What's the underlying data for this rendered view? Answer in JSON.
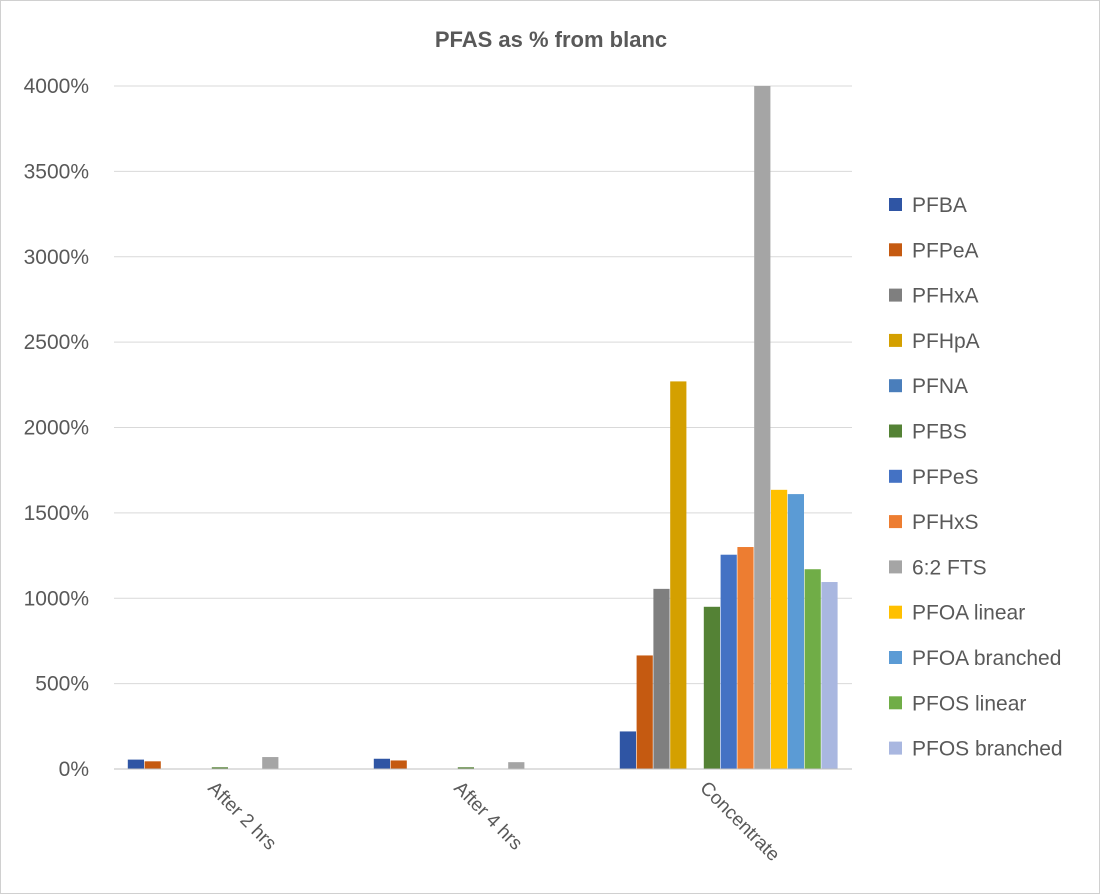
{
  "chart_data": {
    "type": "bar",
    "title": "PFAS as % from blanc",
    "xlabel": "",
    "ylabel": "",
    "ylim": [
      0,
      4000
    ],
    "yticks": [
      0,
      500,
      1000,
      1500,
      2000,
      2500,
      3000,
      3500,
      4000
    ],
    "ytick_suffix": "%",
    "grid": true,
    "legend_position": "right",
    "categories": [
      "After 2 hrs",
      "After 4 hrs",
      "Concentrate"
    ],
    "series": [
      {
        "name": "PFBA",
        "color": "#2f55a4",
        "values": [
          55,
          60,
          220
        ]
      },
      {
        "name": "PFPeA",
        "color": "#c55a11",
        "values": [
          45,
          50,
          665
        ]
      },
      {
        "name": "PFHxA",
        "color": "#7f7f7f",
        "values": [
          0,
          0,
          1055
        ]
      },
      {
        "name": "PFHpA",
        "color": "#d4a000",
        "values": [
          0,
          0,
          2270
        ]
      },
      {
        "name": "PFNA",
        "color": "#4a7ebb",
        "values": [
          0,
          0,
          0
        ]
      },
      {
        "name": "PFBS",
        "color": "#548235",
        "values": [
          10,
          10,
          950
        ]
      },
      {
        "name": "PFPeS",
        "color": "#4472c4",
        "values": [
          0,
          0,
          1255
        ]
      },
      {
        "name": "PFHxS",
        "color": "#ed7d31",
        "values": [
          0,
          0,
          1300
        ]
      },
      {
        "name": "6:2 FTS",
        "color": "#a5a5a5",
        "values": [
          70,
          40,
          4000
        ]
      },
      {
        "name": "PFOA linear",
        "color": "#ffc000",
        "values": [
          0,
          0,
          1635
        ]
      },
      {
        "name": "PFOA branched",
        "color": "#5b9bd5",
        "values": [
          0,
          0,
          1610
        ]
      },
      {
        "name": "PFOS linear",
        "color": "#70ad47",
        "values": [
          0,
          0,
          1170
        ]
      },
      {
        "name": "PFOS branched",
        "color": "#a9b7e0",
        "values": [
          0,
          0,
          1095
        ]
      }
    ]
  }
}
